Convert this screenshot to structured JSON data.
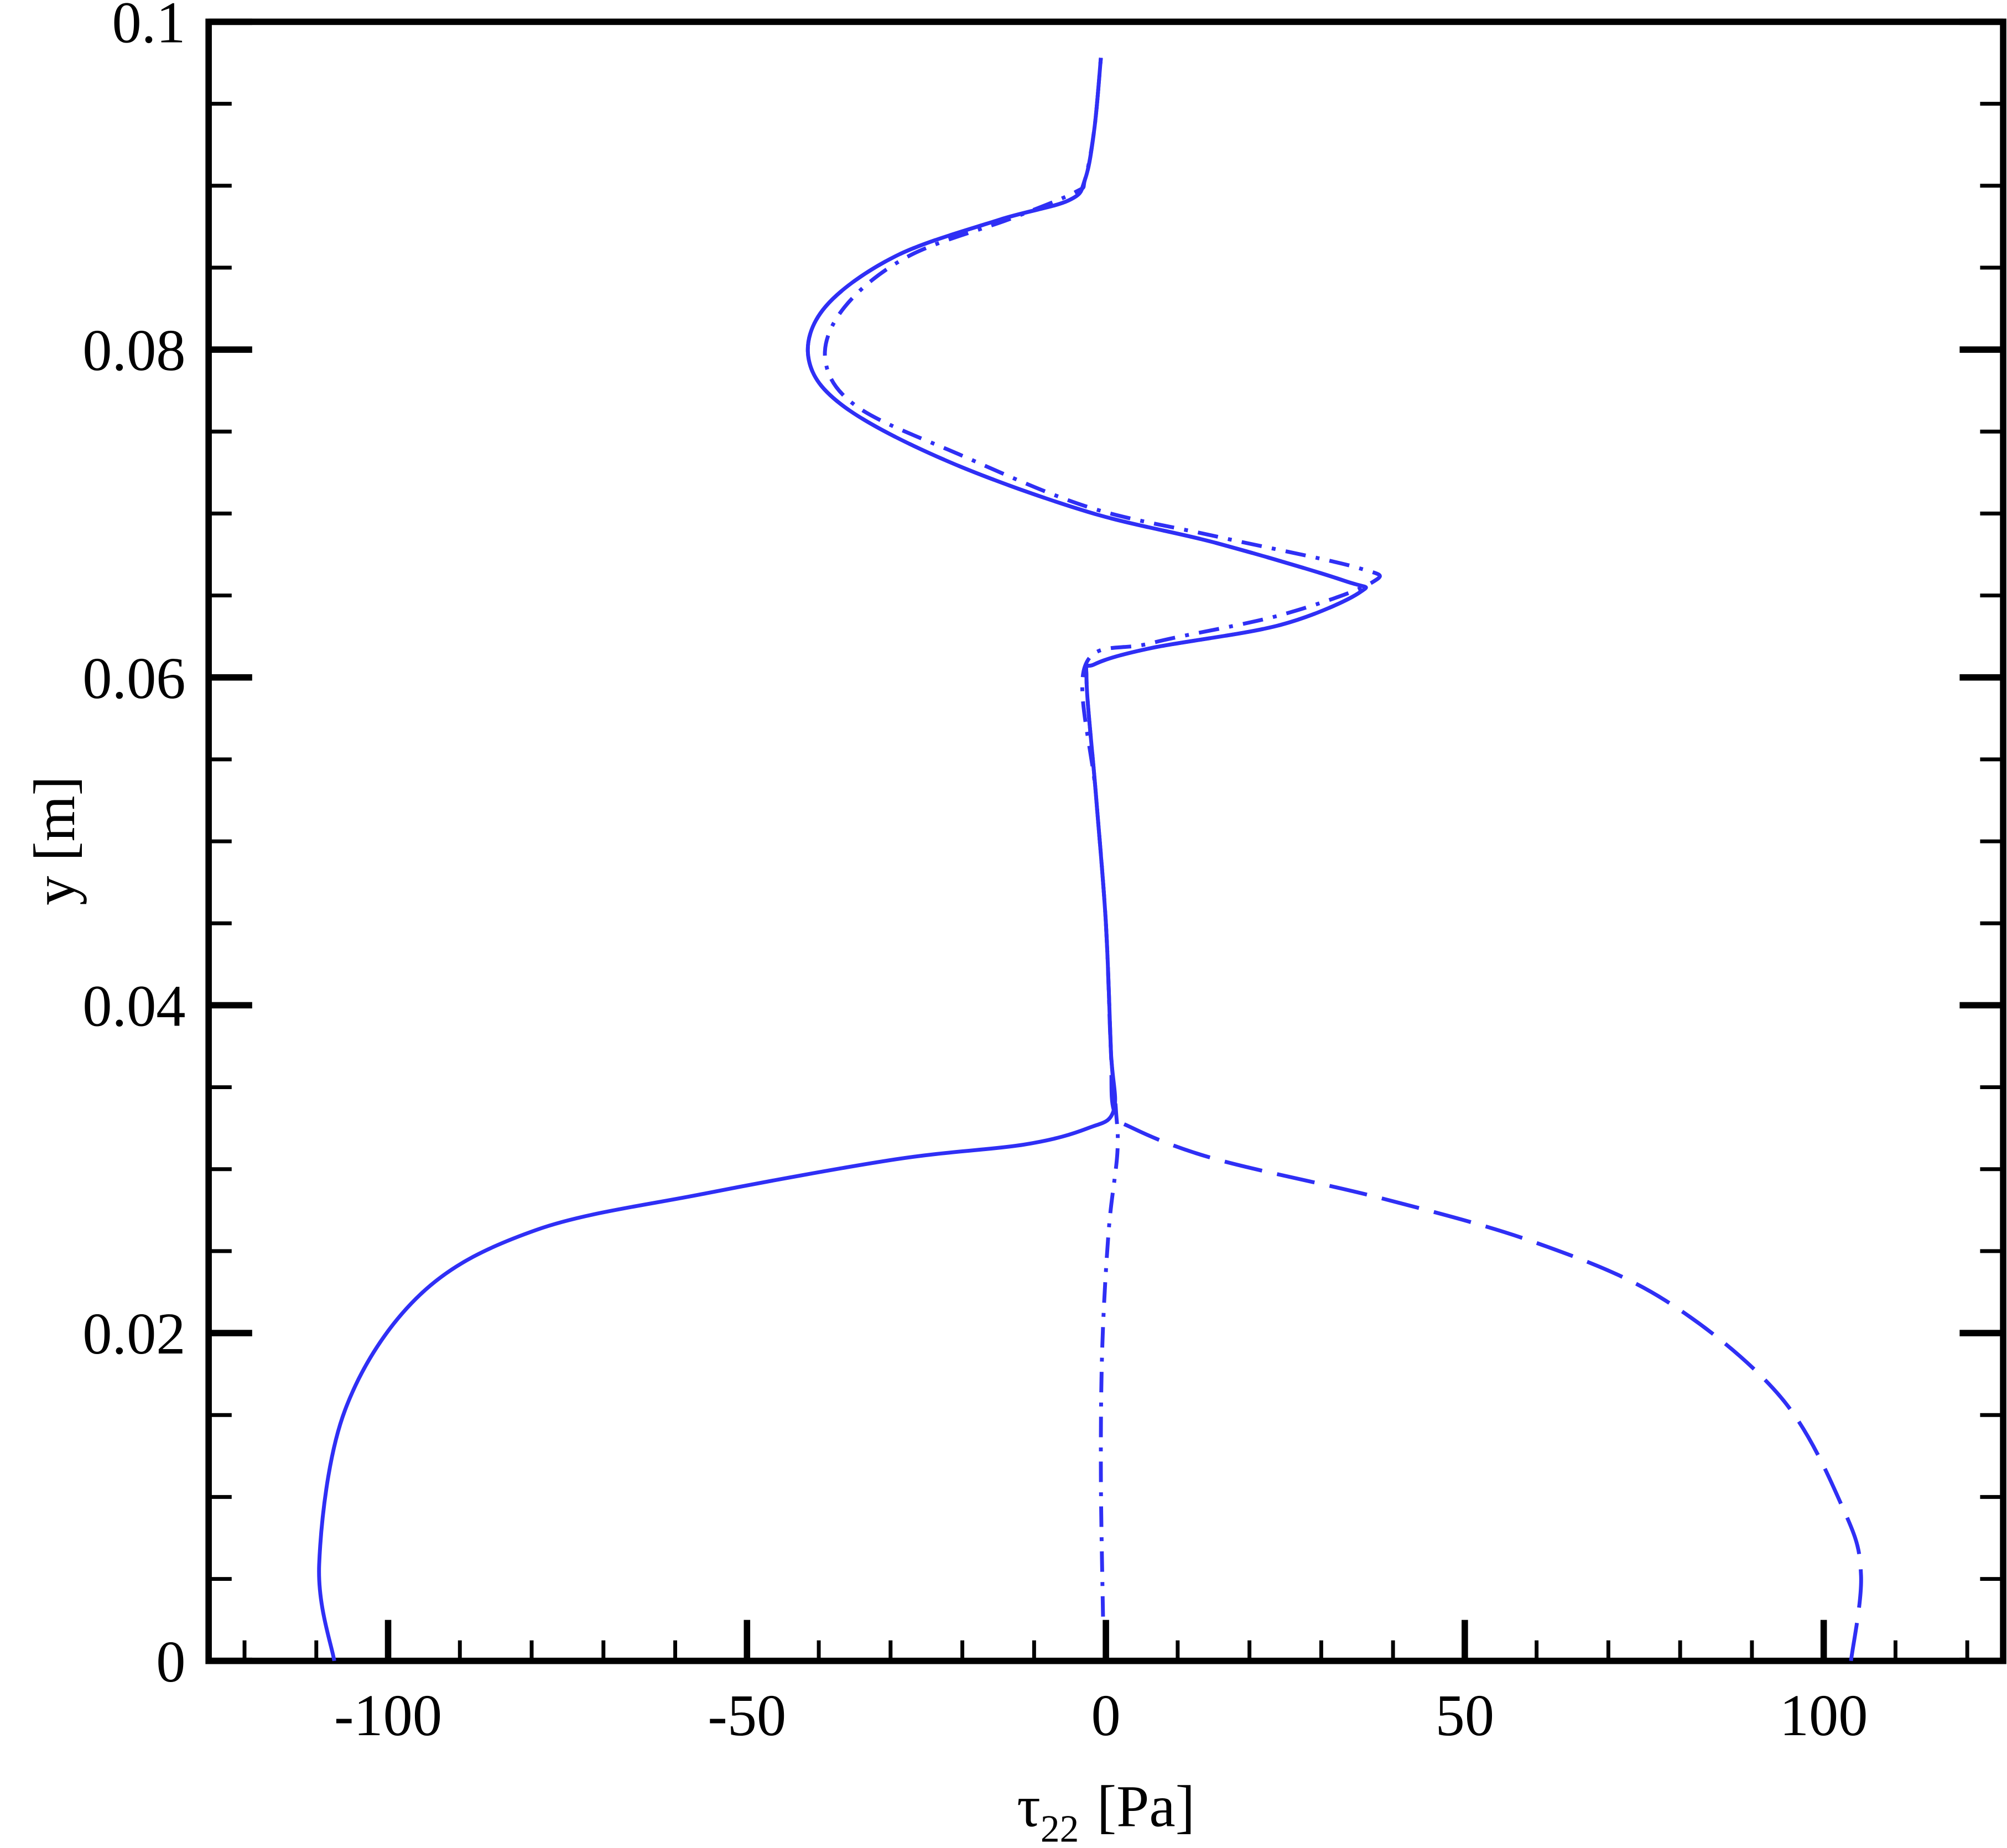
{
  "chart_data": {
    "type": "line",
    "xlabel": [
      "τ",
      "22",
      "[Pa]"
    ],
    "ylabel": "y [m]",
    "xlim": [
      -125,
      125
    ],
    "ylim": [
      0,
      0.1
    ],
    "xticks": [
      -100,
      -50,
      0,
      50,
      100
    ],
    "yticks": [
      0,
      0.02,
      0.04,
      0.06,
      0.08,
      0.1
    ],
    "grid": false,
    "series": [
      {
        "color": "#2f2ff5",
        "dash": "solid",
        "x": [
          -107.5,
          -109.6,
          -106,
          -95.4,
          -79.3,
          -56,
          -29.3,
          -11.4,
          -2.5,
          1.1,
          0.7,
          0,
          -1.4,
          -2.7,
          -1.6,
          6.4,
          24.3,
          35.4,
          33.2,
          15.4,
          -2.5,
          -22.1,
          -36.4,
          -41.4,
          -39.1,
          -29.3,
          -15,
          -5.2,
          -2.9,
          -1.6,
          -0.7
        ],
        "values": [
          0,
          0.0059,
          0.0153,
          0.0224,
          0.0263,
          0.0285,
          0.0306,
          0.0315,
          0.0325,
          0.0336,
          0.0372,
          0.045,
          0.0529,
          0.0599,
          0.0608,
          0.0618,
          0.0632,
          0.0652,
          0.0659,
          0.0682,
          0.0701,
          0.0732,
          0.0765,
          0.0794,
          0.0826,
          0.0857,
          0.0879,
          0.0891,
          0.0904,
          0.0935,
          0.0978
        ]
      },
      {
        "color": "#2f2ff5",
        "dash": "dashed",
        "x": [
          103.8,
          105.2,
          102.9,
          94,
          77.9,
          60,
          38.6,
          15.4,
          3.75,
          1.1,
          0.7,
          0,
          -1.4,
          -2.7,
          -1.6,
          6.4,
          24.3,
          35.4,
          33.2,
          15.4,
          -2.5,
          -22.1,
          -36.4,
          -41.4,
          -39.1,
          -29.3,
          -15,
          -5.2,
          -2.9,
          -1.6,
          -0.7
        ],
        "values": [
          0,
          0.0052,
          0.0091,
          0.0161,
          0.022,
          0.0255,
          0.0282,
          0.0306,
          0.0325,
          0.0336,
          0.0372,
          0.045,
          0.0529,
          0.0599,
          0.0608,
          0.0618,
          0.0632,
          0.0652,
          0.0659,
          0.0682,
          0.0701,
          0.0732,
          0.0765,
          0.0794,
          0.0826,
          0.0857,
          0.0879,
          0.0891,
          0.0904,
          0.0935,
          0.0978
        ]
      },
      {
        "color": "#2f2ff5",
        "dash": "dashdot",
        "x": [
          -0.4,
          -0.7,
          -0.5,
          0.4,
          1.6,
          1.4,
          0.7,
          0,
          -1.4,
          -2.9,
          6.4,
          24.3,
          37.1,
          35,
          15.4,
          -2.5,
          -20.4,
          -34.6,
          -39.1,
          -36.4,
          -27.5,
          -13.2,
          -4.3,
          -2.9,
          -1.6,
          -0.7
        ],
        "values": [
          0.0027,
          0.0114,
          0.0192,
          0.0263,
          0.031,
          0.0336,
          0.0372,
          0.045,
          0.0529,
          0.0607,
          0.0621,
          0.0638,
          0.0658,
          0.0667,
          0.0686,
          0.0704,
          0.0736,
          0.0765,
          0.0794,
          0.0826,
          0.0857,
          0.088,
          0.0896,
          0.0904,
          0.0935,
          0.0978
        ]
      }
    ]
  }
}
